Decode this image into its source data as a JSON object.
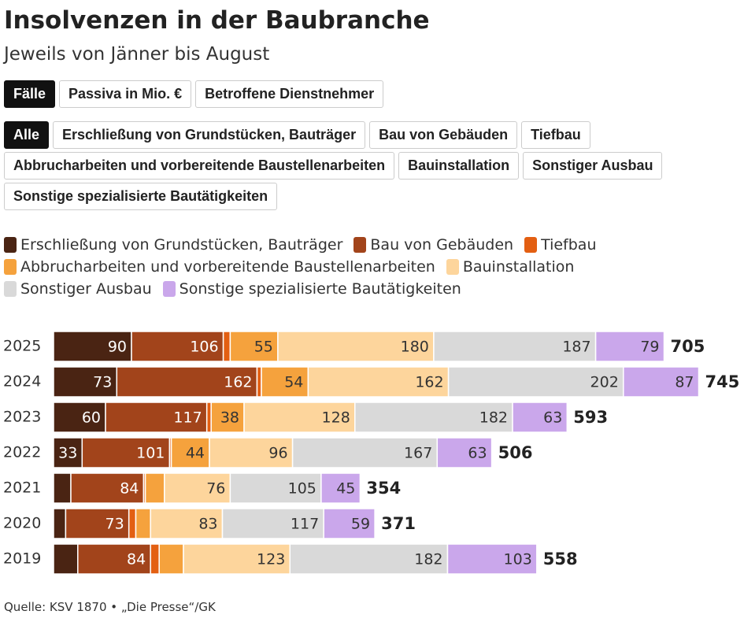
{
  "header": {
    "title": "Insolvenzen in der Baubranche",
    "subtitle": "Jeweils von Jänner bis August"
  },
  "tabs": {
    "items": [
      "Fälle",
      "Passiva in Mio. €",
      "Betroffene Dienstnehmer"
    ],
    "selected": 0
  },
  "filters": {
    "items": [
      "Alle",
      "Erschließung von Grundstücken, Bauträger",
      "Bau von Gebäuden",
      "Tiefbau",
      "Abbrucharbeiten und vorbereitende Baustellenarbeiten",
      "Bauinstallation",
      "Sonstiger Ausbau",
      "Sonstige spezialisierte Bautätigkeiten"
    ],
    "selected": 0
  },
  "chart_data": {
    "type": "stacked-bar",
    "categories": [
      "2025",
      "2024",
      "2023",
      "2022",
      "2021",
      "2020",
      "2019"
    ],
    "series": [
      {
        "name": "Erschließung von Grundstücken, Bauträger",
        "color": "#4a2413",
        "values": [
          90,
          73,
          60,
          33,
          20,
          14,
          28
        ]
      },
      {
        "name": "Bau von Gebäuden",
        "color": "#a2441b",
        "values": [
          106,
          162,
          117,
          101,
          84,
          73,
          84
        ]
      },
      {
        "name": "Tiefbau",
        "color": "#e35f12",
        "values": [
          8,
          5,
          5,
          2,
          2,
          8,
          10
        ]
      },
      {
        "name": "Abbrucharbeiten und vorbereitende Baustellenarbeiten",
        "color": "#f5a23d",
        "values": [
          55,
          54,
          38,
          44,
          22,
          17,
          28
        ]
      },
      {
        "name": "Bauinstallation",
        "color": "#fdd59c",
        "values": [
          180,
          162,
          128,
          96,
          76,
          83,
          123
        ]
      },
      {
        "name": "Sonstiger Ausbau",
        "color": "#d9d9d9",
        "values": [
          187,
          202,
          182,
          167,
          105,
          117,
          182
        ]
      },
      {
        "name": "Sonstige spezialisierte Bautätigkeiten",
        "color": "#caa7eb",
        "values": [
          79,
          87,
          63,
          63,
          45,
          59,
          103
        ]
      }
    ],
    "totals": [
      705,
      745,
      593,
      506,
      354,
      371,
      558
    ],
    "source": "Quelle: KSV 1870 • „Die Presse“/GK"
  }
}
